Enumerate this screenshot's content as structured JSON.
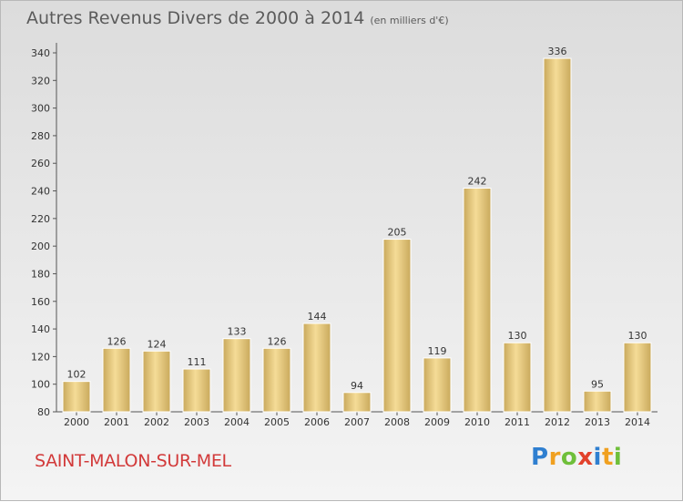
{
  "header": {
    "title": "Autres Revenus Divers de 2000 à 2014",
    "unit": "(en milliers d'€)"
  },
  "footer": {
    "commune": "SAINT-MALON-SUR-MEL",
    "logo_text": "Proxiti"
  },
  "colors": {
    "bar_fill_light": "#f5dc97",
    "bar_fill_dark": "#c9a95c",
    "commune_text": "#d23a3a",
    "title_text": "#5b5b5b"
  },
  "chart_data": {
    "type": "bar",
    "title": "Autres Revenus Divers de 2000 à 2014",
    "subtitle": "(en milliers d'€)",
    "xlabel": "",
    "ylabel": "",
    "categories": [
      "2000",
      "2001",
      "2002",
      "2003",
      "2004",
      "2005",
      "2006",
      "2007",
      "2008",
      "2009",
      "2010",
      "2011",
      "2012",
      "2013",
      "2014"
    ],
    "values": [
      102,
      126,
      124,
      111,
      133,
      126,
      144,
      94,
      205,
      119,
      242,
      130,
      336,
      95,
      130
    ],
    "ylim": [
      80,
      340
    ],
    "yticks": [
      80,
      100,
      120,
      140,
      160,
      180,
      200,
      220,
      240,
      260,
      280,
      300,
      320,
      340
    ],
    "grid": false,
    "legend": "none"
  }
}
